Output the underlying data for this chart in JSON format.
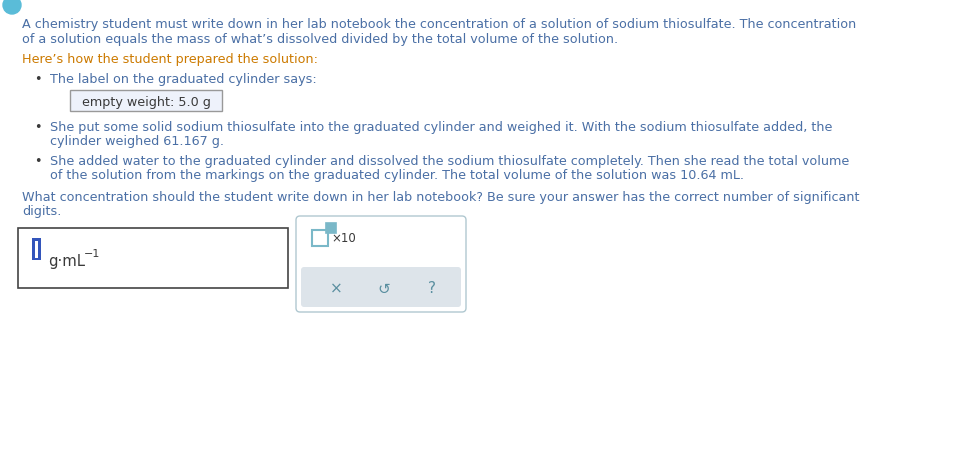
{
  "bg_color": "#ffffff",
  "text_color_body": "#4a6fa5",
  "text_color_orange": "#cc7a00",
  "text_color_dark": "#3a3a3a",
  "text_color_blue_cursor": "#3355bb",
  "text_color_icon": "#5a8fa0",
  "line1": "A chemistry student must write down in her lab notebook the concentration of a solution of sodium thiosulfate. The concentration",
  "line2": "of a solution equals the mass of what’s dissolved divided by the total volume of the solution.",
  "line3": "Here’s how the student prepared the solution:",
  "bullet1": "The label on the graduated cylinder says:",
  "box_text": "empty weight: 5.0 g",
  "bullet2a": "She put some solid sodium thiosulfate into the graduated cylinder and weighed it. With the sodium thiosulfate added, the",
  "bullet2b": "cylinder weighed 61.167 g.",
  "bullet3a": "She added water to the graduated cylinder and dissolved the sodium thiosulfate completely. Then she read the total volume",
  "bullet3b": "of the solution from the markings on the graduated cylinder. The total volume of the solution was 10.64 mL.",
  "question1": "What concentration should the student write down in her lab notebook? Be sure your answer has the correct number of significant",
  "question2": "digits.",
  "font_size": 9.2,
  "icon_color": "#5a8fa0",
  "checkbox_color": "#7ab8c8",
  "cursor_color": "#3355bb"
}
